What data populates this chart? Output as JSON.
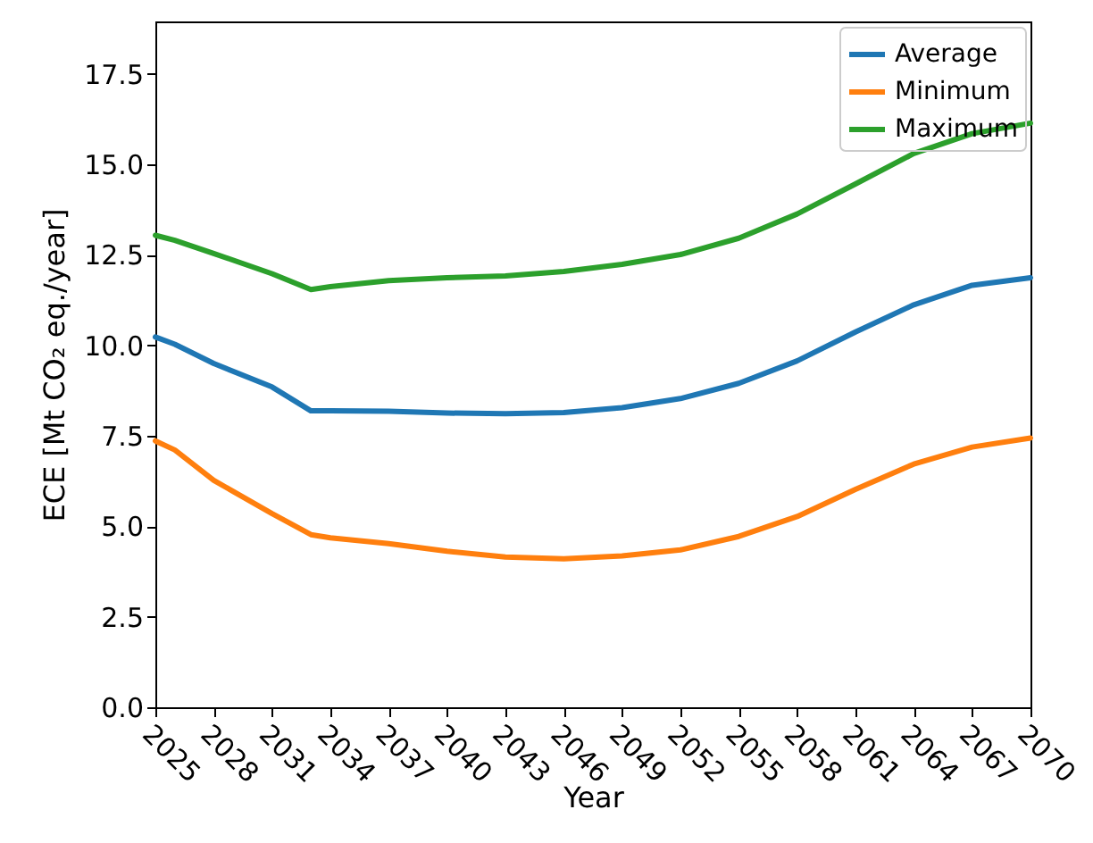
{
  "chart_data": {
    "type": "line",
    "xlabel": "Year",
    "ylabel": "ECE [Mt CO₂ eq./year]",
    "xlim": [
      2025,
      2070
    ],
    "xticks": [
      2025,
      2028,
      2031,
      2034,
      2037,
      2040,
      2043,
      2046,
      2049,
      2052,
      2055,
      2058,
      2061,
      2064,
      2067,
      2070
    ],
    "ylim": [
      0,
      18.95
    ],
    "yticks": [
      {
        "value": 0,
        "label": "0.0"
      },
      2.5,
      {
        "value": 5,
        "label": "5.0"
      },
      7.5,
      {
        "value": 10,
        "label": "10.0"
      },
      12.5,
      {
        "value": 15,
        "label": "15.0"
      },
      17.5
    ],
    "x": [
      2025,
      2026,
      2028,
      2031,
      2033,
      2034,
      2037,
      2040,
      2043,
      2046,
      2049,
      2052,
      2055,
      2058,
      2061,
      2064,
      2067,
      2070
    ],
    "series": [
      {
        "name": "Average",
        "color": "#1f77b4",
        "values": [
          10.23,
          10.03,
          9.5,
          8.85,
          8.19,
          8.19,
          8.18,
          8.13,
          8.11,
          8.14,
          8.28,
          8.53,
          8.95,
          9.57,
          10.37,
          11.12,
          11.66,
          11.87
        ]
      },
      {
        "name": "Minimum",
        "color": "#ff7f0e",
        "values": [
          7.36,
          7.11,
          6.27,
          5.35,
          4.77,
          4.68,
          4.52,
          4.31,
          4.15,
          4.1,
          4.18,
          4.35,
          4.72,
          5.27,
          6.02,
          6.72,
          7.19,
          7.44
        ]
      },
      {
        "name": "Maximum",
        "color": "#2ca02c",
        "values": [
          13.04,
          12.9,
          12.54,
          11.98,
          11.54,
          11.62,
          11.79,
          11.87,
          11.92,
          12.04,
          12.24,
          12.51,
          12.96,
          13.63,
          14.46,
          15.3,
          15.85,
          16.14
        ]
      }
    ],
    "legend": "top right",
    "grid": false
  }
}
